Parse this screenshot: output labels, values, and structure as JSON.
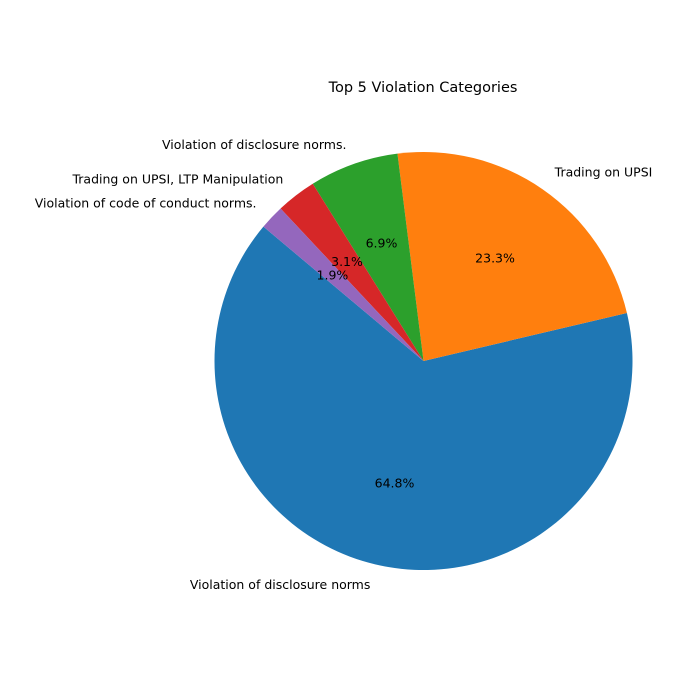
{
  "chart_data": {
    "type": "pie",
    "title": "Top 5 Violation Categories",
    "start_angle_deg": 140,
    "direction": "counterclockwise",
    "slices": [
      {
        "label": "Violation of disclosure norms",
        "value": 64.8,
        "pct_label": "64.8%",
        "color": "#1f77b4"
      },
      {
        "label": "Trading on UPSI",
        "value": 23.3,
        "pct_label": "23.3%",
        "color": "#ff7f0e"
      },
      {
        "label": "Violation of disclosure norms.",
        "value": 6.9,
        "pct_label": "6.9%",
        "color": "#2ca02c"
      },
      {
        "label": "Trading on UPSI, LTP Manipulation",
        "value": 3.1,
        "pct_label": "3.1%",
        "color": "#d62728"
      },
      {
        "label": "Violation of code of conduct norms.",
        "value": 1.9,
        "pct_label": "1.9%",
        "color": "#9467bd"
      }
    ]
  }
}
